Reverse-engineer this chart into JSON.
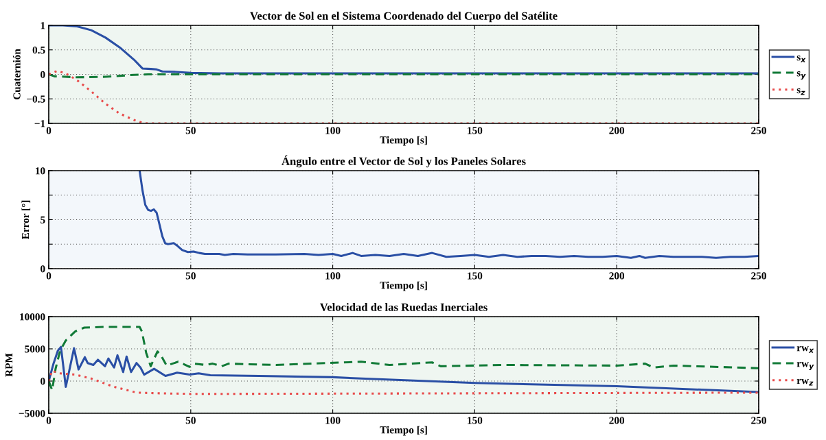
{
  "chart_data": [
    {
      "type": "line",
      "title": "Vector de Sol en el Sistema Coordenado del Cuerpo del Satélite",
      "xlabel": "Tiempo [s]",
      "ylabel": "Cuaternión",
      "xlim": [
        0,
        250
      ],
      "xticks": [
        0,
        50,
        100,
        150,
        200,
        250
      ],
      "ylim": [
        -1,
        1
      ],
      "yticks": [
        -1,
        -0.5,
        0,
        0.5,
        1
      ],
      "grid": true,
      "legend": "right",
      "series": [
        {
          "name": "s$_{x}$",
          "color": "#2a4fa5",
          "line_style": "solid",
          "x": [
            0,
            5,
            10,
            15,
            20,
            25,
            30,
            33,
            36,
            38,
            40,
            45,
            50,
            60,
            250
          ],
          "values": [
            1,
            1,
            0.98,
            0.9,
            0.75,
            0.55,
            0.3,
            0.12,
            0.11,
            0.1,
            0.06,
            0.05,
            0.03,
            0.02,
            0.02
          ]
        },
        {
          "name": "s$_{y}$",
          "color": "#117a37",
          "line_style": "dashed",
          "x": [
            0,
            2,
            10,
            20,
            25,
            30,
            35,
            50,
            250
          ],
          "values": [
            0,
            -0.04,
            -0.06,
            -0.05,
            -0.03,
            -0.01,
            0,
            0,
            0
          ]
        },
        {
          "name": "s$_{z}$",
          "color": "#e84a4a",
          "line_style": "dotted",
          "x": [
            0,
            3,
            6,
            10,
            15,
            20,
            25,
            30,
            33,
            35,
            250
          ],
          "values": [
            0,
            0.07,
            0.02,
            -0.12,
            -0.35,
            -0.6,
            -0.8,
            -0.93,
            -0.99,
            -1,
            -1
          ]
        }
      ]
    },
    {
      "type": "line",
      "title": "Ángulo entre el Vector de Sol y los Paneles Solares",
      "xlabel": "Tiempo [s]",
      "ylabel": "Error [°]",
      "xlim": [
        0,
        250
      ],
      "xticks": [
        0,
        50,
        100,
        150,
        200,
        250
      ],
      "ylim": [
        0,
        10
      ],
      "yticks": [
        0,
        {
          "value": 2.5,
          "label": null
        },
        5,
        {
          "value": 7.5,
          "label": null
        },
        10
      ],
      "grid": true,
      "series": [
        {
          "color": "#2a4fa5",
          "line_style": "solid",
          "x": [
            32,
            33,
            34,
            35,
            36,
            37,
            38,
            39,
            40,
            41,
            42,
            44,
            45,
            47,
            49,
            51,
            53,
            55,
            60,
            62,
            65,
            70,
            80,
            90,
            95,
            100,
            103,
            107,
            110,
            115,
            120,
            125,
            130,
            135,
            140,
            145,
            150,
            155,
            160,
            165,
            170,
            175,
            180,
            185,
            190,
            195,
            200,
            205,
            208,
            210,
            215,
            220,
            225,
            230,
            235,
            240,
            245,
            250
          ],
          "values": [
            10,
            8,
            6.5,
            6,
            5.9,
            6.05,
            5.7,
            4.5,
            3.3,
            2.6,
            2.5,
            2.6,
            2.4,
            1.9,
            1.7,
            1.75,
            1.6,
            1.5,
            1.5,
            1.4,
            1.5,
            1.45,
            1.45,
            1.5,
            1.4,
            1.5,
            1.3,
            1.6,
            1.3,
            1.4,
            1.3,
            1.5,
            1.3,
            1.6,
            1.2,
            1.3,
            1.4,
            1.2,
            1.4,
            1.2,
            1.3,
            1.3,
            1.2,
            1.3,
            1.2,
            1.2,
            1.3,
            1.1,
            1.3,
            1.1,
            1.3,
            1.2,
            1.2,
            1.2,
            1.1,
            1.2,
            1.2,
            1.3
          ]
        }
      ]
    },
    {
      "type": "line",
      "title": "Velocidad de las Ruedas Inerciales",
      "xlabel": "Tiempo [s]",
      "ylabel": "RPM",
      "xlim": [
        0,
        250
      ],
      "xticks": [
        0,
        50,
        100,
        150,
        200,
        250
      ],
      "ylim": [
        -5000,
        10000
      ],
      "yticks": [
        -5000,
        0,
        5000,
        10000
      ],
      "grid": true,
      "legend": "right",
      "series": [
        {
          "name": "rw$_{x}$",
          "color": "#2a4fa5",
          "line_style": "solid",
          "x": [
            0,
            1.6,
            3.2,
            4.3,
            6,
            8.9,
            10.5,
            12.7,
            13.7,
            15.7,
            17.3,
            19.8,
            21,
            23,
            24.2,
            26.2,
            27.4,
            29,
            30.9,
            32.3,
            33.6,
            37.1,
            41.1,
            45.2,
            49.6,
            52.8,
            56.9,
            74,
            100,
            110,
            150,
            200,
            250
          ],
          "values": [
            0,
            2600,
            4700,
            5300,
            -900,
            5100,
            1800,
            3700,
            2800,
            2500,
            3300,
            2300,
            3500,
            2100,
            4000,
            1400,
            3800,
            1400,
            2800,
            2100,
            1000,
            1900,
            800,
            1300,
            1000,
            1200,
            900,
            800,
            600,
            400,
            -300,
            -800,
            -1700
          ]
        },
        {
          "name": "rw$_{y}$",
          "color": "#117a37",
          "line_style": "dashed",
          "x": [
            0,
            1.2,
            2.4,
            4,
            6,
            9.3,
            12.5,
            19,
            32,
            32.8,
            34.3,
            35.9,
            38.3,
            39.5,
            41.5,
            45.6,
            49.6,
            51.2,
            55.2,
            57.7,
            60.9,
            63.3,
            80,
            110,
            120,
            135,
            138,
            160,
            200,
            210,
            213,
            220,
            250
          ],
          "values": [
            0,
            -1400,
            1900,
            4700,
            6300,
            7700,
            8300,
            8400,
            8400,
            7700,
            4400,
            2300,
            4600,
            4000,
            2400,
            3000,
            2200,
            2700,
            2500,
            2700,
            2300,
            2700,
            2500,
            3000,
            2500,
            2900,
            2300,
            2500,
            2400,
            2700,
            2100,
            2400,
            2000
          ]
        },
        {
          "name": "rw$_{z}$",
          "color": "#e84a4a",
          "line_style": "dotted",
          "x": [
            0,
            1.2,
            3.6,
            9.3,
            14.9,
            23,
            31,
            39,
            51,
            250
          ],
          "values": [
            0,
            1600,
            1200,
            1000,
            400,
            -900,
            -1800,
            -1900,
            -2000,
            -1800
          ]
        }
      ]
    }
  ]
}
